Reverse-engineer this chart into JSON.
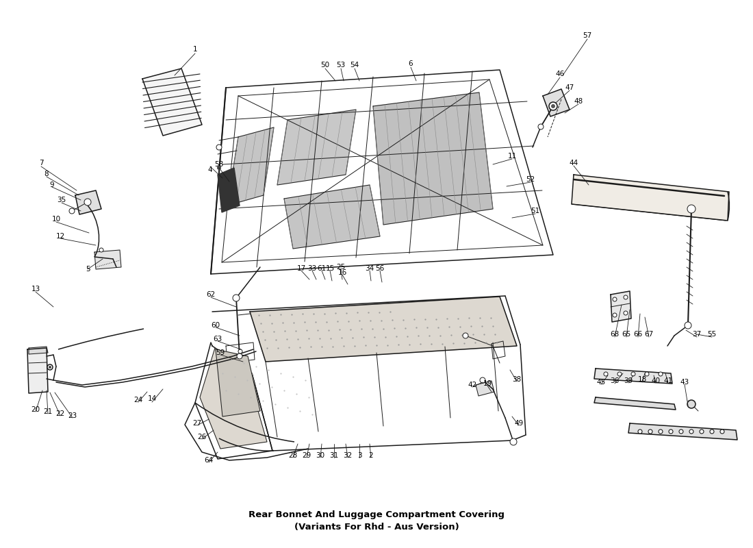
{
  "title": "Rear Bonnet And Luggage Compartment Covering\n(Variants For Rhd - Aus Version)",
  "bg": "#ffffff",
  "lc": "#1a1a1a",
  "tc": "#000000",
  "lfs": 7.5,
  "tfs": 9.5,
  "labels": [
    [
      "1",
      285,
      72
    ],
    [
      "4",
      307,
      248
    ],
    [
      "5",
      128,
      393
    ],
    [
      "6",
      600,
      93
    ],
    [
      "7",
      60,
      238
    ],
    [
      "8",
      68,
      254
    ],
    [
      "9",
      76,
      270
    ],
    [
      "10",
      82,
      320
    ],
    [
      "11",
      748,
      228
    ],
    [
      "12",
      88,
      345
    ],
    [
      "13",
      52,
      422
    ],
    [
      "14",
      222,
      582
    ],
    [
      "15",
      482,
      392
    ],
    [
      "16",
      500,
      398
    ],
    [
      "17",
      440,
      392
    ],
    [
      "18",
      938,
      554
    ],
    [
      "19",
      712,
      560
    ],
    [
      "20",
      52,
      598
    ],
    [
      "21",
      70,
      601
    ],
    [
      "22",
      88,
      604
    ],
    [
      "23",
      106,
      607
    ],
    [
      "24",
      202,
      584
    ],
    [
      "25",
      498,
      390
    ],
    [
      "26",
      295,
      638
    ],
    [
      "27",
      288,
      618
    ],
    [
      "28",
      428,
      665
    ],
    [
      "29",
      448,
      665
    ],
    [
      "30",
      468,
      665
    ],
    [
      "31",
      488,
      665
    ],
    [
      "32",
      508,
      665
    ],
    [
      "33",
      456,
      392
    ],
    [
      "34",
      540,
      392
    ],
    [
      "35",
      90,
      292
    ],
    [
      "36",
      898,
      556
    ],
    [
      "37",
      1018,
      488
    ],
    [
      "38",
      755,
      554
    ],
    [
      "39",
      918,
      556
    ],
    [
      "40",
      958,
      556
    ],
    [
      "41",
      976,
      556
    ],
    [
      "42",
      690,
      562
    ],
    [
      "43",
      1000,
      558
    ],
    [
      "44",
      838,
      238
    ],
    [
      "45",
      878,
      558
    ],
    [
      "46",
      818,
      108
    ],
    [
      "47",
      832,
      128
    ],
    [
      "48",
      845,
      148
    ],
    [
      "49",
      758,
      618
    ],
    [
      "50",
      475,
      95
    ],
    [
      "51",
      782,
      308
    ],
    [
      "52",
      775,
      262
    ],
    [
      "53",
      498,
      95
    ],
    [
      "54",
      518,
      95
    ],
    [
      "55",
      1040,
      488
    ],
    [
      "56",
      555,
      392
    ],
    [
      "57",
      858,
      52
    ],
    [
      "58",
      320,
      240
    ],
    [
      "59",
      322,
      515
    ],
    [
      "60",
      315,
      475
    ],
    [
      "61",
      470,
      392
    ],
    [
      "62",
      308,
      430
    ],
    [
      "63",
      318,
      495
    ],
    [
      "64",
      305,
      672
    ],
    [
      "65",
      915,
      488
    ],
    [
      "66",
      932,
      488
    ],
    [
      "67",
      948,
      488
    ],
    [
      "68",
      898,
      488
    ],
    [
      "3",
      525,
      665
    ],
    [
      "2",
      542,
      665
    ]
  ]
}
